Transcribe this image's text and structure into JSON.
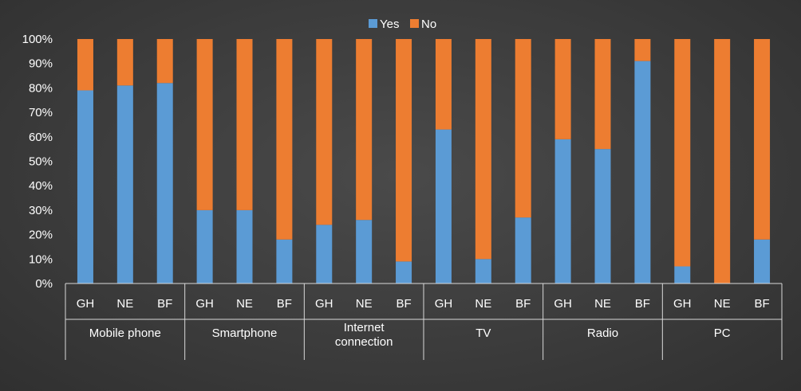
{
  "chart_data": {
    "type": "bar",
    "stacked": true,
    "percent_stacked": true,
    "groups": [
      "Mobile phone",
      "Smartphone",
      "Internet connection",
      "TV",
      "Radio",
      "PC"
    ],
    "subcategories": [
      "GH",
      "NE",
      "BF"
    ],
    "series": [
      {
        "name": "Yes",
        "color": "#5b9bd5",
        "values": [
          [
            79,
            81,
            82
          ],
          [
            30,
            30,
            18
          ],
          [
            24,
            26,
            9
          ],
          [
            63,
            10,
            27
          ],
          [
            59,
            55,
            91
          ],
          [
            7,
            0,
            18
          ]
        ]
      },
      {
        "name": "No",
        "color": "#ed7d31",
        "values": [
          [
            21,
            19,
            18
          ],
          [
            70,
            70,
            82
          ],
          [
            76,
            74,
            91
          ],
          [
            37,
            90,
            73
          ],
          [
            41,
            45,
            9
          ],
          [
            93,
            100,
            82
          ]
        ]
      }
    ],
    "yticks": [
      "0%",
      "10%",
      "20%",
      "30%",
      "40%",
      "50%",
      "60%",
      "70%",
      "80%",
      "90%",
      "100%"
    ],
    "ylim": [
      0,
      100
    ],
    "legend": "top-center",
    "grid": false
  }
}
